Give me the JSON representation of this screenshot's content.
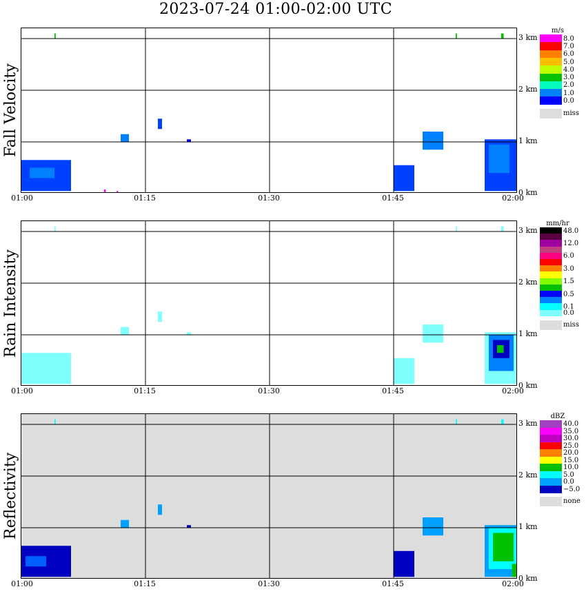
{
  "title": "2023-07-24   01:00-02:00 UTC",
  "colors": {
    "missing": "#dddddd",
    "grid": "#000000"
  },
  "chart_data": [
    {
      "type": "heatmap",
      "panel": "fall-velocity",
      "ylabel": "Fall Velocity",
      "x_ticks": [
        "01:00",
        "01:15",
        "01:30",
        "01:45",
        "02:00"
      ],
      "y_ticks": [
        "0 km",
        "1 km",
        "2 km",
        "3 km"
      ],
      "xlim_minutes": [
        0,
        60
      ],
      "ylim_km": [
        0,
        3.2
      ],
      "background": "#ffffff",
      "legend": {
        "unit": "m/s",
        "entries": [
          {
            "label": "8.0",
            "color": "#ff00ff"
          },
          {
            "label": "7.0",
            "color": "#ff0000"
          },
          {
            "label": "6.0",
            "color": "#ff8000"
          },
          {
            "label": "5.0",
            "color": "#ffbf00"
          },
          {
            "label": "4.0",
            "color": "#bfff00"
          },
          {
            "label": "3.0",
            "color": "#00c000"
          },
          {
            "label": "2.0",
            "color": "#00ffbf"
          },
          {
            "label": "1.0",
            "color": "#0080ff"
          },
          {
            "label": "0.0",
            "color": "#0000ff"
          },
          {
            "label": "miss",
            "color": "#dddddd"
          }
        ]
      },
      "echoes": [
        {
          "t": [
            0,
            6
          ],
          "h": [
            0.05,
            0.65
          ],
          "color": "#0040ff"
        },
        {
          "t": [
            1,
            4
          ],
          "h": [
            0.3,
            0.5
          ],
          "color": "#0080ff"
        },
        {
          "t": [
            12,
            13
          ],
          "h": [
            1.0,
            1.15
          ],
          "color": "#0080ff"
        },
        {
          "t": [
            16.5,
            17
          ],
          "h": [
            1.25,
            1.45
          ],
          "color": "#0040ff"
        },
        {
          "t": [
            20,
            20.5
          ],
          "h": [
            1.0,
            1.05
          ],
          "color": "#0000ff"
        },
        {
          "t": [
            45,
            47.5
          ],
          "h": [
            0.05,
            0.55
          ],
          "color": "#0040ff"
        },
        {
          "t": [
            48.5,
            51
          ],
          "h": [
            0.85,
            1.2
          ],
          "color": "#0080ff"
        },
        {
          "t": [
            56,
            60
          ],
          "h": [
            0.05,
            1.05
          ],
          "color": "#0040ff"
        },
        {
          "t": [
            56.5,
            59
          ],
          "h": [
            0.4,
            0.95
          ],
          "color": "#0080ff"
        },
        {
          "t": [
            10,
            10.2
          ],
          "h": [
            0,
            0.08
          ],
          "color": "#ff00ff"
        },
        {
          "t": [
            11.5,
            11.7
          ],
          "h": [
            0,
            0.05
          ],
          "color": "#ff00ff"
        },
        {
          "t": [
            4,
            4.15
          ],
          "h": [
            3.0,
            3.1
          ],
          "color": "#00c000"
        },
        {
          "t": [
            52.5,
            52.65
          ],
          "h": [
            3.0,
            3.1
          ],
          "color": "#00c000"
        },
        {
          "t": [
            58,
            58.3
          ],
          "h": [
            3.0,
            3.1
          ],
          "color": "#00c000"
        }
      ]
    },
    {
      "type": "heatmap",
      "panel": "rain-intensity",
      "ylabel": "Rain Intensity",
      "x_ticks": [
        "01:00",
        "01:15",
        "01:30",
        "01:45",
        "02:00"
      ],
      "y_ticks": [
        "0 km",
        "1 km",
        "2 km",
        "3 km"
      ],
      "xlim_minutes": [
        0,
        60
      ],
      "ylim_km": [
        0,
        3.2
      ],
      "background": "#ffffff",
      "legend": {
        "unit": "mm/hr",
        "entries": [
          {
            "label": "48.0",
            "color": "#000000"
          },
          {
            "label": "",
            "color": "#5a0040"
          },
          {
            "label": "12.0",
            "color": "#a000a0"
          },
          {
            "label": "",
            "color": "#c04080"
          },
          {
            "label": "6.0",
            "color": "#ff0080"
          },
          {
            "label": "",
            "color": "#ff0000"
          },
          {
            "label": "3.0",
            "color": "#ff8000"
          },
          {
            "label": "",
            "color": "#ffff00"
          },
          {
            "label": "1.5",
            "color": "#80ff00"
          },
          {
            "label": "",
            "color": "#00c000"
          },
          {
            "label": "0.5",
            "color": "#0000ff"
          },
          {
            "label": "",
            "color": "#0080ff"
          },
          {
            "label": "0.1",
            "color": "#00ffff"
          },
          {
            "label": "0.0",
            "color": "#80ffff"
          },
          {
            "label": "miss",
            "color": "#dddddd"
          }
        ]
      },
      "echoes": [
        {
          "t": [
            0,
            6
          ],
          "h": [
            0.05,
            0.65
          ],
          "color": "#80ffff"
        },
        {
          "t": [
            12,
            13
          ],
          "h": [
            1.0,
            1.15
          ],
          "color": "#80ffff"
        },
        {
          "t": [
            16.5,
            17
          ],
          "h": [
            1.25,
            1.45
          ],
          "color": "#80ffff"
        },
        {
          "t": [
            20,
            20.5
          ],
          "h": [
            1.0,
            1.05
          ],
          "color": "#80ffff"
        },
        {
          "t": [
            45,
            47.5
          ],
          "h": [
            0.05,
            0.55
          ],
          "color": "#80ffff"
        },
        {
          "t": [
            48.5,
            51
          ],
          "h": [
            0.85,
            1.2
          ],
          "color": "#80ffff"
        },
        {
          "t": [
            56,
            60
          ],
          "h": [
            0.05,
            1.05
          ],
          "color": "#80ffff"
        },
        {
          "t": [
            56.5,
            59.5
          ],
          "h": [
            0.3,
            1.0
          ],
          "color": "#0080ff"
        },
        {
          "t": [
            57,
            59
          ],
          "h": [
            0.55,
            0.9
          ],
          "color": "#0000c0"
        },
        {
          "t": [
            57.5,
            58.3
          ],
          "h": [
            0.65,
            0.8
          ],
          "color": "#00c000"
        },
        {
          "t": [
            4,
            4.15
          ],
          "h": [
            3.0,
            3.1
          ],
          "color": "#80ffff"
        },
        {
          "t": [
            52.5,
            52.65
          ],
          "h": [
            3.0,
            3.1
          ],
          "color": "#80ffff"
        },
        {
          "t": [
            58,
            58.3
          ],
          "h": [
            3.0,
            3.1
          ],
          "color": "#80ffff"
        }
      ]
    },
    {
      "type": "heatmap",
      "panel": "reflectivity",
      "ylabel": "Reflectivity",
      "x_ticks": [
        "01:00",
        "01:15",
        "01:30",
        "01:45",
        "02:00"
      ],
      "y_ticks": [
        "0 km",
        "1 km",
        "2 km",
        "3 km"
      ],
      "xlim_minutes": [
        0,
        60
      ],
      "ylim_km": [
        0,
        3.2
      ],
      "background": "#dddddd",
      "legend": {
        "unit": "dBZ",
        "entries": [
          {
            "label": "40.0",
            "color": "#a040c0"
          },
          {
            "label": "35.0",
            "color": "#ff00ff"
          },
          {
            "label": "30.0",
            "color": "#c000c0"
          },
          {
            "label": "25.0",
            "color": "#ff0000"
          },
          {
            "label": "20.0",
            "color": "#ff8000"
          },
          {
            "label": "15.0",
            "color": "#ffff00"
          },
          {
            "label": "10.0",
            "color": "#00c000"
          },
          {
            "label": "5.0",
            "color": "#00ffff"
          },
          {
            "label": "0.0",
            "color": "#00a0ff"
          },
          {
            "label": "−5.0",
            "color": "#0000c0"
          },
          {
            "label": "none",
            "color": "#dddddd"
          }
        ]
      },
      "echoes": [
        {
          "t": [
            0,
            6
          ],
          "h": [
            0.05,
            0.65
          ],
          "color": "#0000c0"
        },
        {
          "t": [
            0.5,
            3
          ],
          "h": [
            0.25,
            0.45
          ],
          "color": "#0060ff"
        },
        {
          "t": [
            12,
            13
          ],
          "h": [
            1.0,
            1.15
          ],
          "color": "#00a0ff"
        },
        {
          "t": [
            16.5,
            17
          ],
          "h": [
            1.25,
            1.45
          ],
          "color": "#00a0ff"
        },
        {
          "t": [
            20,
            20.5
          ],
          "h": [
            1.0,
            1.05
          ],
          "color": "#0000c0"
        },
        {
          "t": [
            45,
            47.5
          ],
          "h": [
            0.05,
            0.55
          ],
          "color": "#0000c0"
        },
        {
          "t": [
            48.5,
            51
          ],
          "h": [
            0.85,
            1.2
          ],
          "color": "#00a0ff"
        },
        {
          "t": [
            56,
            60
          ],
          "h": [
            0.05,
            1.05
          ],
          "color": "#00a0ff"
        },
        {
          "t": [
            56.5,
            60
          ],
          "h": [
            0.2,
            1.0
          ],
          "color": "#00ffff"
        },
        {
          "t": [
            57,
            59.5
          ],
          "h": [
            0.35,
            0.9
          ],
          "color": "#00c000"
        },
        {
          "t": [
            59.3,
            60
          ],
          "h": [
            0.05,
            0.3
          ],
          "color": "#00c000"
        },
        {
          "t": [
            4,
            4.15
          ],
          "h": [
            3.0,
            3.1
          ],
          "color": "#00ffff"
        },
        {
          "t": [
            52.5,
            52.65
          ],
          "h": [
            3.0,
            3.1
          ],
          "color": "#00ffff"
        },
        {
          "t": [
            58,
            58.3
          ],
          "h": [
            3.0,
            3.1
          ],
          "color": "#00ffff"
        }
      ]
    }
  ]
}
